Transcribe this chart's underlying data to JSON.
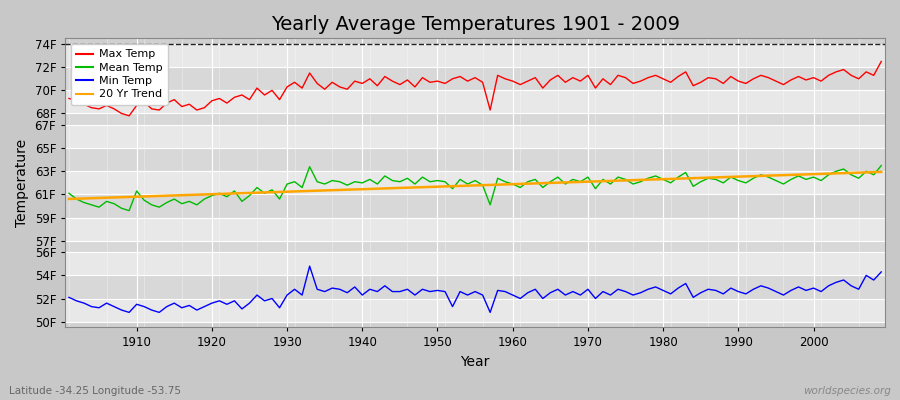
{
  "title": "Yearly Average Temperatures 1901 - 2009",
  "xlabel": "Year",
  "ylabel": "Temperature",
  "subtitle_left": "Latitude -34.25 Longitude -53.75",
  "subtitle_right": "worldspecies.org",
  "ylim": [
    49.5,
    74.5
  ],
  "xlim": [
    1900.5,
    2009.5
  ],
  "xticks": [
    1910,
    1920,
    1930,
    1940,
    1950,
    1960,
    1970,
    1980,
    1990,
    2000
  ],
  "ytick_vals": [
    50,
    52,
    54,
    56,
    57,
    59,
    61,
    63,
    65,
    67,
    68,
    70,
    72,
    74
  ],
  "ytick_labels": [
    "50F",
    "52F",
    "54F",
    "56F",
    "57F",
    "59F",
    "61F",
    "63F",
    "65F",
    "67F",
    "68F",
    "70F",
    "72F",
    "74F"
  ],
  "years": [
    1901,
    1902,
    1903,
    1904,
    1905,
    1906,
    1907,
    1908,
    1909,
    1910,
    1911,
    1912,
    1913,
    1914,
    1915,
    1916,
    1917,
    1918,
    1919,
    1920,
    1921,
    1922,
    1923,
    1924,
    1925,
    1926,
    1927,
    1928,
    1929,
    1930,
    1931,
    1932,
    1933,
    1934,
    1935,
    1936,
    1937,
    1938,
    1939,
    1940,
    1941,
    1942,
    1943,
    1944,
    1945,
    1946,
    1947,
    1948,
    1949,
    1950,
    1951,
    1952,
    1953,
    1954,
    1955,
    1956,
    1957,
    1958,
    1959,
    1960,
    1961,
    1962,
    1963,
    1964,
    1965,
    1966,
    1967,
    1968,
    1969,
    1970,
    1971,
    1972,
    1973,
    1974,
    1975,
    1976,
    1977,
    1978,
    1979,
    1980,
    1981,
    1982,
    1983,
    1984,
    1985,
    1986,
    1987,
    1988,
    1989,
    1990,
    1991,
    1992,
    1993,
    1994,
    1995,
    1996,
    1997,
    1998,
    1999,
    2000,
    2001,
    2002,
    2003,
    2004,
    2005,
    2006,
    2007,
    2008,
    2009
  ],
  "max_temp": [
    69.3,
    69.1,
    68.8,
    68.5,
    68.4,
    68.7,
    68.4,
    68.0,
    67.8,
    68.7,
    69.0,
    68.4,
    68.3,
    68.9,
    69.2,
    68.6,
    68.8,
    68.3,
    68.5,
    69.1,
    69.3,
    68.9,
    69.4,
    69.6,
    69.2,
    70.2,
    69.6,
    70.0,
    69.2,
    70.3,
    70.7,
    70.2,
    71.5,
    70.6,
    70.1,
    70.7,
    70.3,
    70.1,
    70.8,
    70.6,
    71.0,
    70.4,
    71.2,
    70.8,
    70.5,
    70.9,
    70.3,
    71.1,
    70.7,
    70.8,
    70.6,
    71.0,
    71.2,
    70.8,
    71.1,
    70.7,
    68.3,
    71.3,
    71.0,
    70.8,
    70.5,
    70.8,
    71.1,
    70.2,
    70.9,
    71.3,
    70.7,
    71.1,
    70.8,
    71.3,
    70.2,
    71.0,
    70.5,
    71.3,
    71.1,
    70.6,
    70.8,
    71.1,
    71.3,
    71.0,
    70.7,
    71.2,
    71.6,
    70.4,
    70.7,
    71.1,
    71.0,
    70.6,
    71.2,
    70.8,
    70.6,
    71.0,
    71.3,
    71.1,
    70.8,
    70.5,
    70.9,
    71.2,
    70.9,
    71.1,
    70.8,
    71.3,
    71.6,
    71.8,
    71.3,
    71.0,
    71.6,
    71.3,
    72.5
  ],
  "mean_temp": [
    61.1,
    60.6,
    60.3,
    60.1,
    59.9,
    60.4,
    60.2,
    59.8,
    59.6,
    61.3,
    60.5,
    60.1,
    59.9,
    60.3,
    60.6,
    60.2,
    60.4,
    60.1,
    60.6,
    60.9,
    61.1,
    60.8,
    61.3,
    60.4,
    60.9,
    61.6,
    61.1,
    61.4,
    60.6,
    61.9,
    62.1,
    61.6,
    63.4,
    62.1,
    61.9,
    62.2,
    62.1,
    61.8,
    62.1,
    62.0,
    62.3,
    61.9,
    62.6,
    62.2,
    62.1,
    62.4,
    61.9,
    62.5,
    62.1,
    62.2,
    62.1,
    61.5,
    62.3,
    61.9,
    62.2,
    61.8,
    60.1,
    62.4,
    62.1,
    61.9,
    61.6,
    62.1,
    62.3,
    61.6,
    62.1,
    62.5,
    61.9,
    62.3,
    62.1,
    62.5,
    61.5,
    62.3,
    61.9,
    62.5,
    62.3,
    61.9,
    62.1,
    62.4,
    62.6,
    62.3,
    62.0,
    62.5,
    62.9,
    61.7,
    62.1,
    62.4,
    62.3,
    62.0,
    62.5,
    62.2,
    62.0,
    62.4,
    62.7,
    62.5,
    62.2,
    61.9,
    62.3,
    62.6,
    62.3,
    62.5,
    62.2,
    62.7,
    63.0,
    63.2,
    62.7,
    62.4,
    63.0,
    62.7,
    63.5
  ],
  "min_temp": [
    52.1,
    51.8,
    51.6,
    51.3,
    51.2,
    51.6,
    51.3,
    51.0,
    50.8,
    51.5,
    51.3,
    51.0,
    50.8,
    51.3,
    51.6,
    51.2,
    51.4,
    51.0,
    51.3,
    51.6,
    51.8,
    51.5,
    51.8,
    51.1,
    51.6,
    52.3,
    51.8,
    52.0,
    51.2,
    52.3,
    52.8,
    52.3,
    54.8,
    52.8,
    52.6,
    52.9,
    52.8,
    52.5,
    53.0,
    52.3,
    52.8,
    52.6,
    53.1,
    52.6,
    52.6,
    52.8,
    52.3,
    52.8,
    52.6,
    52.7,
    52.6,
    51.3,
    52.6,
    52.3,
    52.6,
    52.3,
    50.8,
    52.7,
    52.6,
    52.3,
    52.0,
    52.5,
    52.8,
    52.0,
    52.5,
    52.8,
    52.3,
    52.6,
    52.3,
    52.8,
    52.0,
    52.6,
    52.3,
    52.8,
    52.6,
    52.3,
    52.5,
    52.8,
    53.0,
    52.7,
    52.4,
    52.9,
    53.3,
    52.1,
    52.5,
    52.8,
    52.7,
    52.4,
    52.9,
    52.6,
    52.4,
    52.8,
    53.1,
    52.9,
    52.6,
    52.3,
    52.7,
    53.0,
    52.7,
    52.9,
    52.6,
    53.1,
    53.4,
    53.6,
    53.1,
    52.8,
    54.0,
    53.6,
    54.3
  ],
  "bg_color": "#c8c8c8",
  "plot_bg_color": "#d0d0d0",
  "plot_bg_color2": "#e0e0e0",
  "max_color": "#ff0000",
  "mean_color": "#00bb00",
  "min_color": "#0000ff",
  "trend_color": "#ffa500",
  "grid_color": "#ffffff",
  "dashed_line_y": 74.0,
  "dashed_line_color": "#222222",
  "title_fontsize": 14,
  "tick_fontsize": 8.5,
  "label_fontsize": 10
}
